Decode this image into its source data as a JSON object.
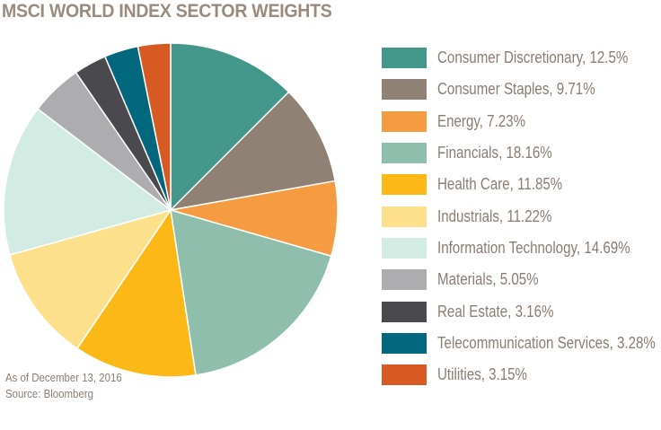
{
  "chart_data": {
    "type": "pie",
    "title": "MSCI WORLD INDEX SECTOR WEIGHTS",
    "start": "top, clockwise",
    "legend_position": "right",
    "slices": [
      {
        "name": "Consumer Discretionary",
        "value": 12.5,
        "label": "Consumer Discretionary, 12.5%",
        "color": "#43968a"
      },
      {
        "name": "Consumer Staples",
        "value": 9.71,
        "label": "Consumer Staples, 9.71%",
        "color": "#8f8173"
      },
      {
        "name": "Energy",
        "value": 7.23,
        "label": "Energy, 7.23%",
        "color": "#f59c42"
      },
      {
        "name": "Financials",
        "value": 18.16,
        "label": "Financials, 18.16%",
        "color": "#8fbfac"
      },
      {
        "name": "Health Care",
        "value": 11.85,
        "label": "Health Care, 11.85%",
        "color": "#fbb817"
      },
      {
        "name": "Industrials",
        "value": 11.22,
        "label": "Industrials, 11.22%",
        "color": "#fde08c"
      },
      {
        "name": "Information Technology",
        "value": 14.69,
        "label": "Information Technology, 14.69%",
        "color": "#d2ebe3"
      },
      {
        "name": "Materials",
        "value": 5.05,
        "label": "Materials, 5.05%",
        "color": "#adadb0"
      },
      {
        "name": "Real Estate",
        "value": 3.16,
        "label": "Real Estate, 3.16%",
        "color": "#4a494d"
      },
      {
        "name": "Telecommunication Services",
        "value": 3.28,
        "label": "Telecommunication Services, 3.28%",
        "color": "#00677c"
      },
      {
        "name": "Utilities",
        "value": 3.15,
        "label": "Utilities, 3.15%",
        "color": "#d65a22"
      }
    ]
  },
  "footer": {
    "date": "As of December 13, 2016",
    "source": "Source: Bloomberg"
  }
}
